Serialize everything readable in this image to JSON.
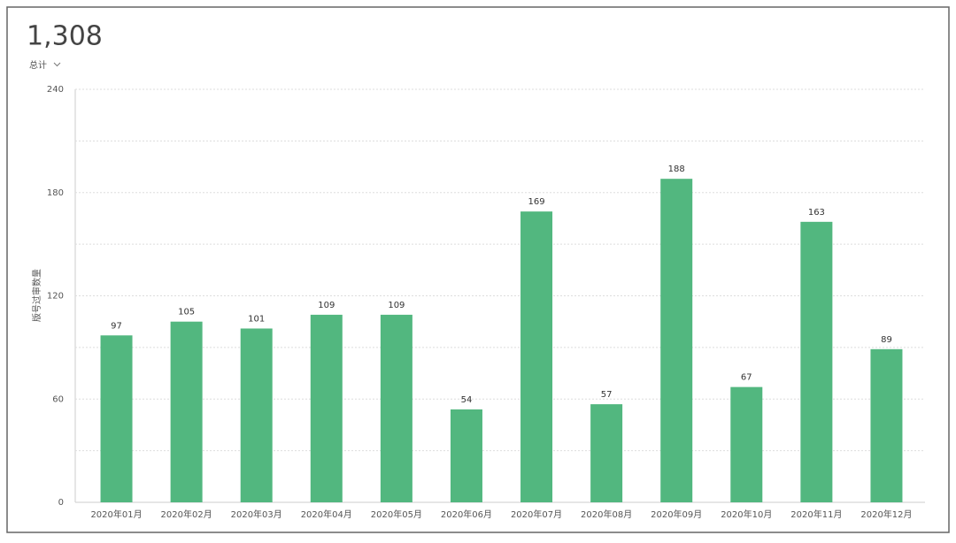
{
  "total": "1,308",
  "total_label": "总计",
  "chart_data": {
    "type": "bar",
    "y_label": "版号过审数量",
    "categories": [
      "2020年01月",
      "2020年02月",
      "2020年03月",
      "2020年04月",
      "2020年05月",
      "2020年06月",
      "2020年07月",
      "2020年08月",
      "2020年09月",
      "2020年10月",
      "2020年11月",
      "2020年12月"
    ],
    "values": [
      97,
      105,
      101,
      109,
      109,
      54,
      169,
      57,
      188,
      67,
      163,
      89
    ],
    "color": "#52b77f",
    "ylim": [
      0,
      240
    ],
    "yticks": [
      0,
      60,
      120,
      180,
      240
    ],
    "y_minor_ticks": [
      30,
      90,
      150,
      210
    ],
    "grid": true,
    "data_labels": true
  }
}
